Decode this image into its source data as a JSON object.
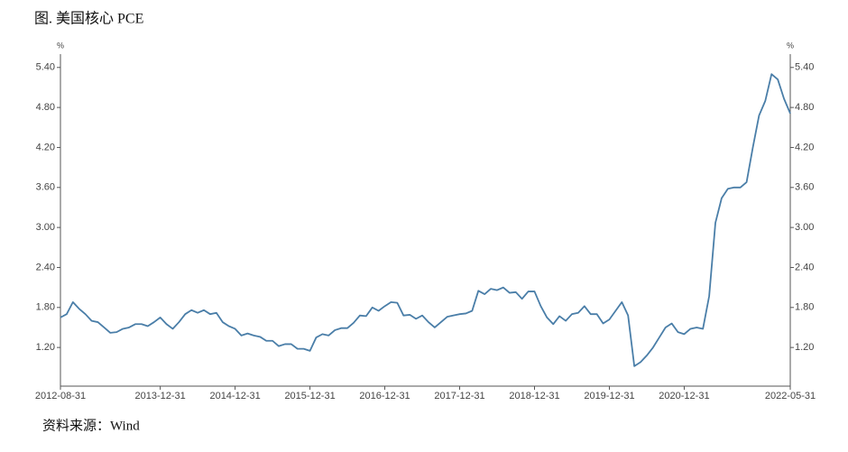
{
  "chart_data": {
    "type": "line",
    "title": "图. 美国核心 PCE",
    "y_unit": "%",
    "y2_unit": "%",
    "source": "资料来源：Wind",
    "x": [
      "2012-08-31",
      null,
      null,
      null,
      null,
      null,
      null,
      null,
      null,
      null,
      null,
      null,
      null,
      null,
      null,
      null,
      "2013-12-31",
      null,
      null,
      null,
      null,
      null,
      null,
      null,
      null,
      null,
      null,
      null,
      "2014-12-31",
      null,
      null,
      null,
      null,
      null,
      null,
      null,
      null,
      null,
      null,
      null,
      "2015-12-31",
      null,
      null,
      null,
      null,
      null,
      null,
      null,
      null,
      null,
      null,
      null,
      "2016-12-31",
      null,
      null,
      null,
      null,
      null,
      null,
      null,
      null,
      null,
      null,
      null,
      "2017-12-31",
      null,
      null,
      null,
      null,
      null,
      null,
      null,
      null,
      null,
      null,
      null,
      "2018-12-31",
      null,
      null,
      null,
      null,
      null,
      null,
      null,
      null,
      null,
      null,
      null,
      "2019-12-31",
      null,
      null,
      null,
      null,
      null,
      null,
      null,
      null,
      null,
      null,
      null,
      "2020-12-31",
      null,
      null,
      null,
      null,
      null,
      null,
      null,
      null,
      null,
      null,
      null,
      null,
      null,
      null,
      null,
      null,
      "2022-05-31"
    ],
    "series": [
      {
        "color": "#4a7ea8",
        "values": [
          1.65,
          1.7,
          1.88,
          1.78,
          1.7,
          1.6,
          1.58,
          1.5,
          1.42,
          1.43,
          1.48,
          1.5,
          1.55,
          1.55,
          1.52,
          1.58,
          1.65,
          1.55,
          1.48,
          1.58,
          1.7,
          1.76,
          1.72,
          1.76,
          1.7,
          1.72,
          1.58,
          1.52,
          1.48,
          1.38,
          1.41,
          1.38,
          1.36,
          1.3,
          1.3,
          1.22,
          1.25,
          1.25,
          1.18,
          1.18,
          1.15,
          1.35,
          1.4,
          1.38,
          1.46,
          1.49,
          1.49,
          1.57,
          1.68,
          1.67,
          1.8,
          1.75,
          1.82,
          1.88,
          1.87,
          1.68,
          1.69,
          1.63,
          1.68,
          1.58,
          1.5,
          1.58,
          1.66,
          1.68,
          1.7,
          1.71,
          1.75,
          2.05,
          2.0,
          2.08,
          2.06,
          2.1,
          2.02,
          2.03,
          1.93,
          2.04,
          2.04,
          1.82,
          1.65,
          1.55,
          1.67,
          1.6,
          1.7,
          1.72,
          1.82,
          1.7,
          1.7,
          1.56,
          1.62,
          1.75,
          1.88,
          1.68,
          0.92,
          0.98,
          1.08,
          1.2,
          1.35,
          1.5,
          1.56,
          1.43,
          1.4,
          1.48,
          1.5,
          1.48,
          1.97,
          3.07,
          3.44,
          3.58,
          3.6,
          3.6,
          3.68,
          4.2,
          4.68,
          4.9,
          5.3,
          5.22,
          4.93,
          4.71
        ]
      }
    ],
    "ylim": [
      0.62,
      5.6
    ],
    "yticks": [
      {
        "value": 1.2,
        "label": "1.20"
      },
      {
        "value": 1.8,
        "label": "1.80"
      },
      {
        "value": 2.4,
        "label": "2.40"
      },
      {
        "value": 3.0,
        "label": "3.00"
      },
      {
        "value": 3.6,
        "label": "3.60"
      },
      {
        "value": 4.2,
        "label": "4.20"
      },
      {
        "value": 4.8,
        "label": "4.80"
      },
      {
        "value": 5.4,
        "label": "5.40"
      }
    ],
    "y2lim": [
      0.62,
      5.6
    ],
    "y2ticks": [
      {
        "value": 1.2,
        "label": "1.20"
      },
      {
        "value": 1.8,
        "label": "1.80"
      },
      {
        "value": 2.4,
        "label": "2.40"
      },
      {
        "value": 3.0,
        "label": "3.00"
      },
      {
        "value": 3.6,
        "label": "3.60"
      },
      {
        "value": 4.2,
        "label": "4.20"
      },
      {
        "value": 4.8,
        "label": "4.80"
      },
      {
        "value": 5.4,
        "label": "5.40"
      }
    ],
    "grid": false
  }
}
